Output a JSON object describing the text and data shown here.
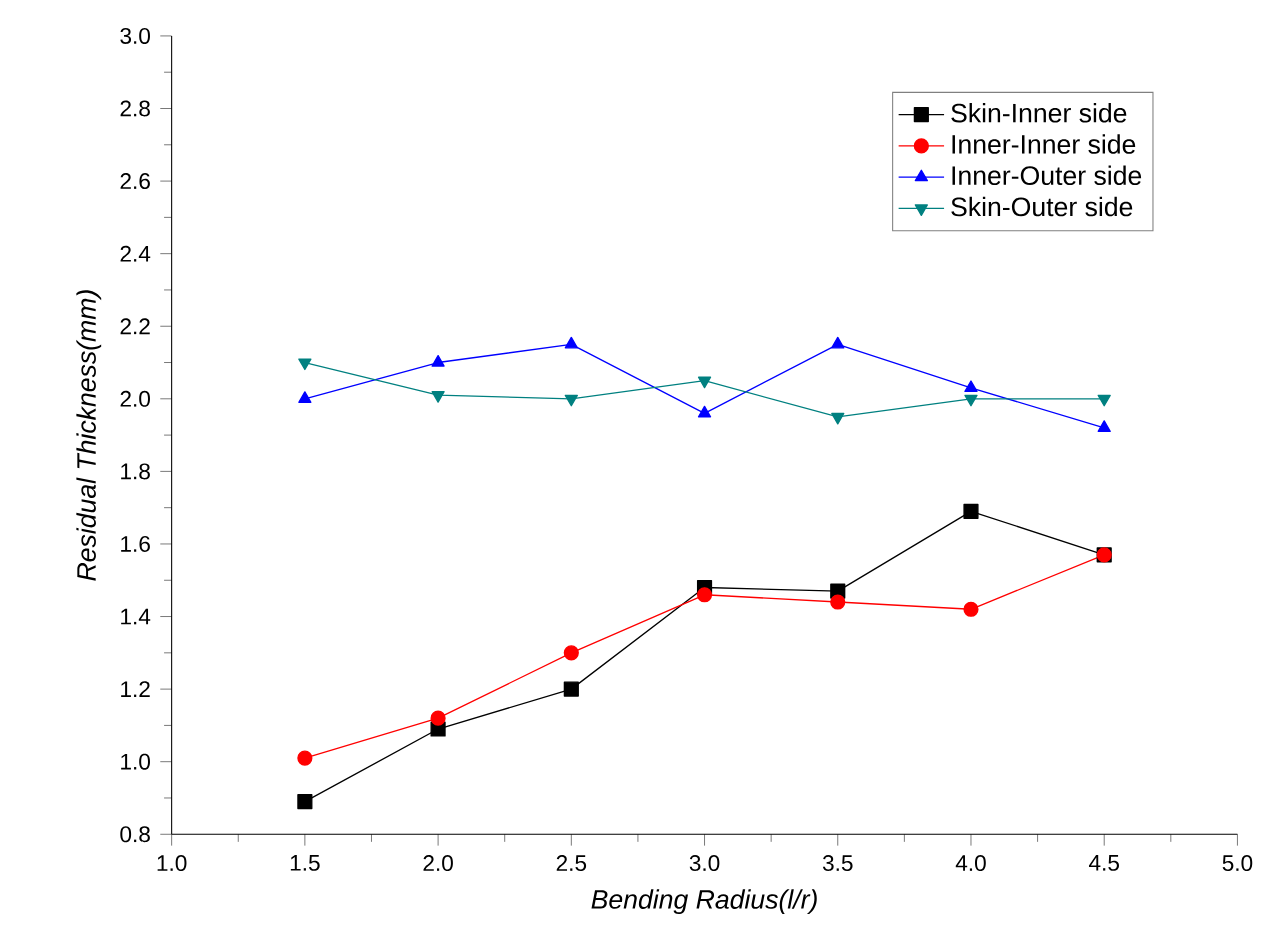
{
  "chart_data": {
    "type": "line",
    "xlabel": "Bending Radius(l/r)",
    "ylabel": "Residual Thickness(mm)",
    "x": [
      1.5,
      2.0,
      2.5,
      3.0,
      3.5,
      4.0,
      4.5
    ],
    "series": [
      {
        "name": "Skin-Inner side",
        "color": "#000000",
        "marker": "square",
        "values": [
          0.89,
          1.09,
          1.2,
          1.48,
          1.47,
          1.69,
          1.57
        ]
      },
      {
        "name": "Inner-Inner side",
        "color": "#ff0000",
        "marker": "circle",
        "values": [
          1.01,
          1.12,
          1.3,
          1.46,
          1.44,
          1.42,
          1.57
        ]
      },
      {
        "name": "Inner-Outer side",
        "color": "#0000ff",
        "marker": "triangle",
        "values": [
          2.0,
          2.1,
          2.15,
          1.96,
          2.15,
          2.03,
          1.92
        ]
      },
      {
        "name": "Skin-Outer side",
        "color": "#008080",
        "marker": "triangle down",
        "values": [
          2.1,
          2.01,
          2.0,
          2.05,
          1.95,
          2.0,
          2.0
        ]
      }
    ],
    "xlim": [
      1.0,
      5.0
    ],
    "xticks": [
      {
        "value": 1.0,
        "label": "1.0"
      },
      {
        "value": 1.5,
        "label": "1.5"
      },
      {
        "value": 2.0,
        "label": "2.0"
      },
      {
        "value": 2.5,
        "label": "2.5"
      },
      {
        "value": 3.0,
        "label": "3.0"
      },
      {
        "value": 3.5,
        "label": "3.5"
      },
      {
        "value": 4.0,
        "label": "4.0"
      },
      {
        "value": 4.5,
        "label": "4.5"
      },
      {
        "value": 5.0,
        "label": "5.0"
      }
    ],
    "ylim": [
      0.8,
      3.0
    ],
    "yticks": [
      {
        "value": 0.8,
        "label": "0.8"
      },
      {
        "value": 1.0,
        "label": "1.0"
      },
      {
        "value": 1.2,
        "label": "1.2"
      },
      {
        "value": 1.4,
        "label": "1.4"
      },
      {
        "value": 1.6,
        "label": "1.6"
      },
      {
        "value": 1.8,
        "label": "1.8"
      },
      {
        "value": 2.0,
        "label": "2.0"
      },
      {
        "value": 2.2,
        "label": "2.2"
      },
      {
        "value": 2.4,
        "label": "2.4"
      },
      {
        "value": 2.6,
        "label": "2.6"
      },
      {
        "value": 2.8,
        "label": "2.8"
      },
      {
        "value": 3.0,
        "label": "3.0"
      }
    ],
    "legend": "top right",
    "line_style": "solid",
    "grid": false
  }
}
